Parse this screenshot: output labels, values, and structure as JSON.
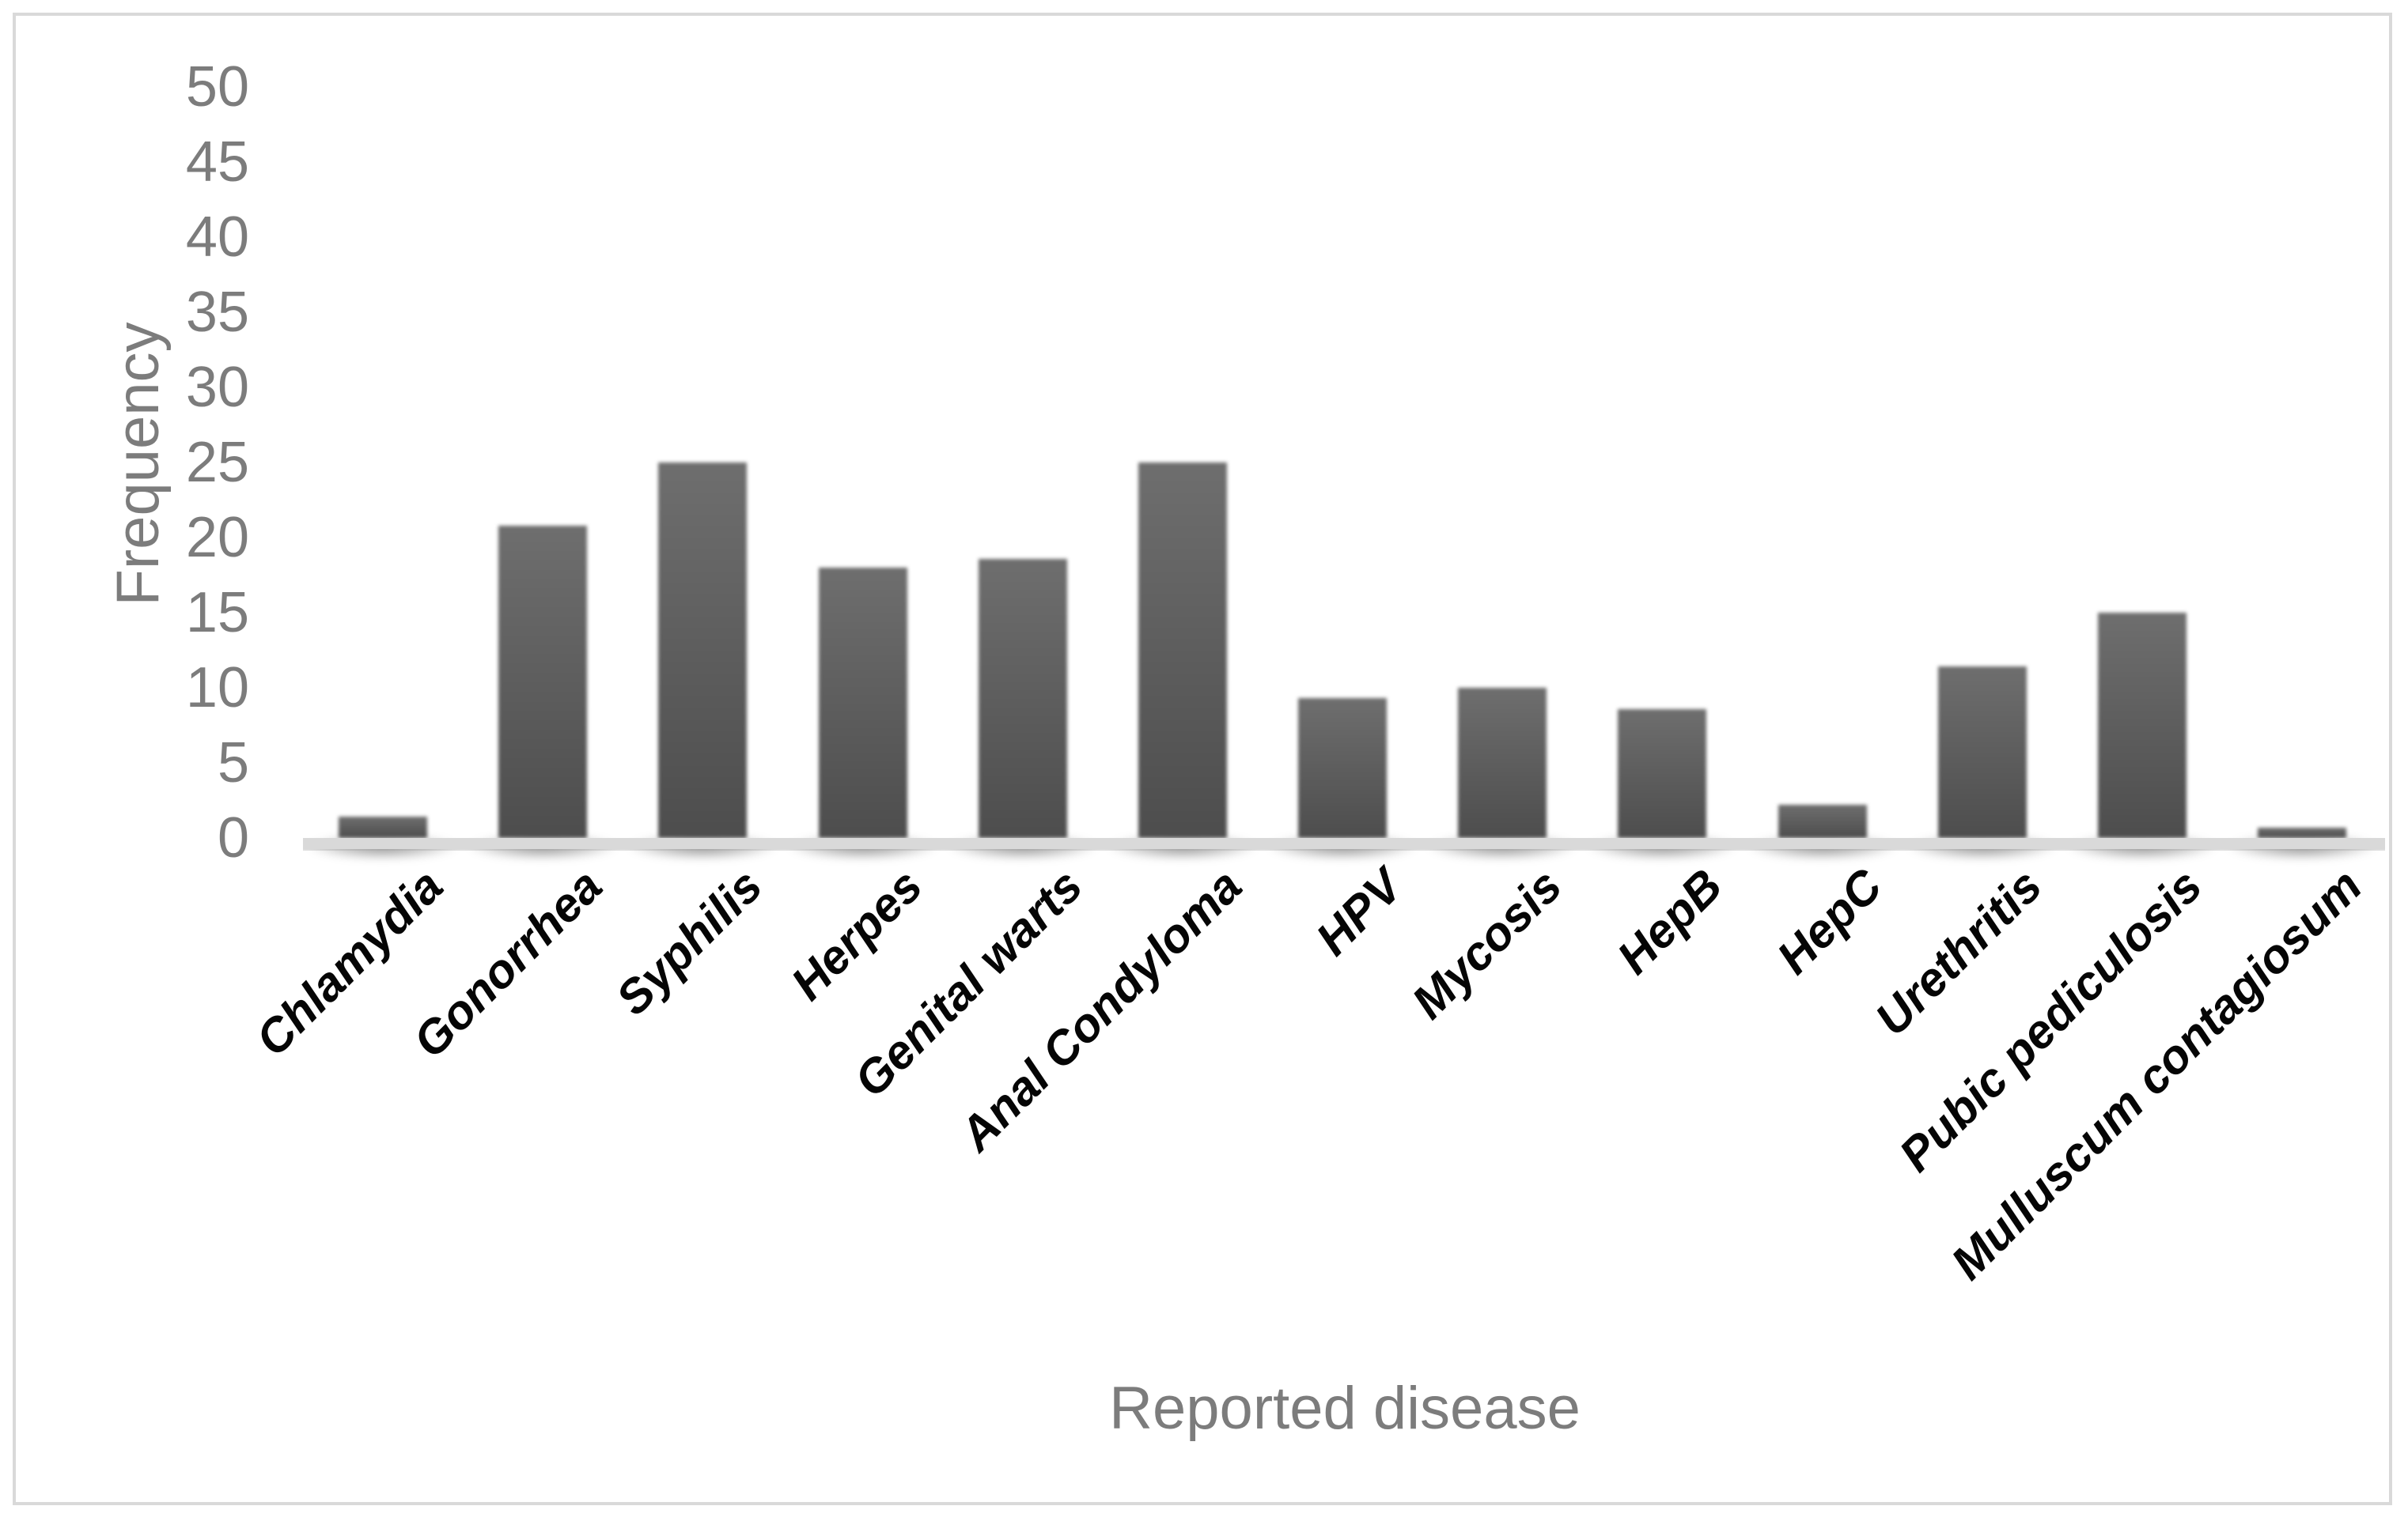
{
  "figure": {
    "background_color": "#ffffff",
    "border_color": "#d9d9d9",
    "axis_text_color": "#7c7c7c",
    "category_text_color": "#000000",
    "baseline_color": "#d9d9d9",
    "bar_color_top": "#6e6e6e",
    "bar_color_bottom": "#4d4d4d"
  },
  "chart_data": {
    "type": "bar",
    "title": "",
    "xlabel": "Reported disease",
    "ylabel": "Frequency",
    "categories": [
      "Chlamydia",
      "Gonorrhea",
      "Syphilis",
      "Herpes",
      "Genital warts",
      "Anal Condyloma",
      "HPV",
      "Mycosis",
      "HepB",
      "HepC",
      "Urethritis",
      "Pubic pediculosis",
      "Mulluscum contagiosum"
    ],
    "values": [
      1.4,
      20.8,
      25,
      18,
      18.6,
      25,
      9.3,
      10,
      8.6,
      2.2,
      11.4,
      15,
      0.7
    ],
    "ylim": [
      0,
      50
    ],
    "ytick_step": 5,
    "ytick_labels": [
      "0",
      "5",
      "10",
      "15",
      "20",
      "25",
      "30",
      "35",
      "40",
      "45",
      "50"
    ],
    "grid": false,
    "legend": false,
    "bar_orientation": "vertical",
    "xlabel_rotation_deg": -45
  }
}
